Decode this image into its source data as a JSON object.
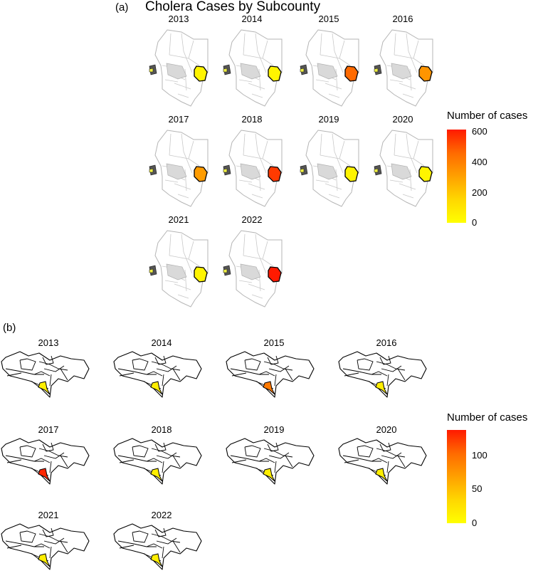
{
  "panel_a": {
    "label": "(a)",
    "title": "Cholera Cases by Subcounty",
    "legend": {
      "title": "Number of cases",
      "ticks": [
        "600",
        "400",
        "200",
        "0"
      ],
      "max": 600,
      "colors": [
        "#ffff00",
        "#ffd700",
        "#ffa000",
        "#ff6a00",
        "#ff1a00"
      ]
    },
    "maps": [
      {
        "year": "2013",
        "value": 40
      },
      {
        "year": "2014",
        "value": 40
      },
      {
        "year": "2015",
        "value": 450
      },
      {
        "year": "2016",
        "value": 330
      },
      {
        "year": "2017",
        "value": 310
      },
      {
        "year": "2018",
        "value": 540
      },
      {
        "year": "2019",
        "value": 40
      },
      {
        "year": "2020",
        "value": 40
      },
      {
        "year": "2021",
        "value": 40
      },
      {
        "year": "2022",
        "value": 620
      }
    ]
  },
  "panel_b": {
    "label": "(b)",
    "legend": {
      "title": "Number of cases",
      "ticks": [
        "100",
        "50",
        "0"
      ],
      "max": 140,
      "colors": [
        "#ffff00",
        "#ffd700",
        "#ffa000",
        "#ff6a00",
        "#ff1a00"
      ]
    },
    "maps": [
      {
        "year": "2013",
        "value": 15
      },
      {
        "year": "2014",
        "value": 15
      },
      {
        "year": "2015",
        "value": 95
      },
      {
        "year": "2016",
        "value": 15
      },
      {
        "year": "2017",
        "value": 135
      },
      {
        "year": "2018",
        "value": 15
      },
      {
        "year": "2019",
        "value": 15
      },
      {
        "year": "2020",
        "value": 15
      },
      {
        "year": "2021",
        "value": 15
      },
      {
        "year": "2022",
        "value": 15
      }
    ]
  }
}
